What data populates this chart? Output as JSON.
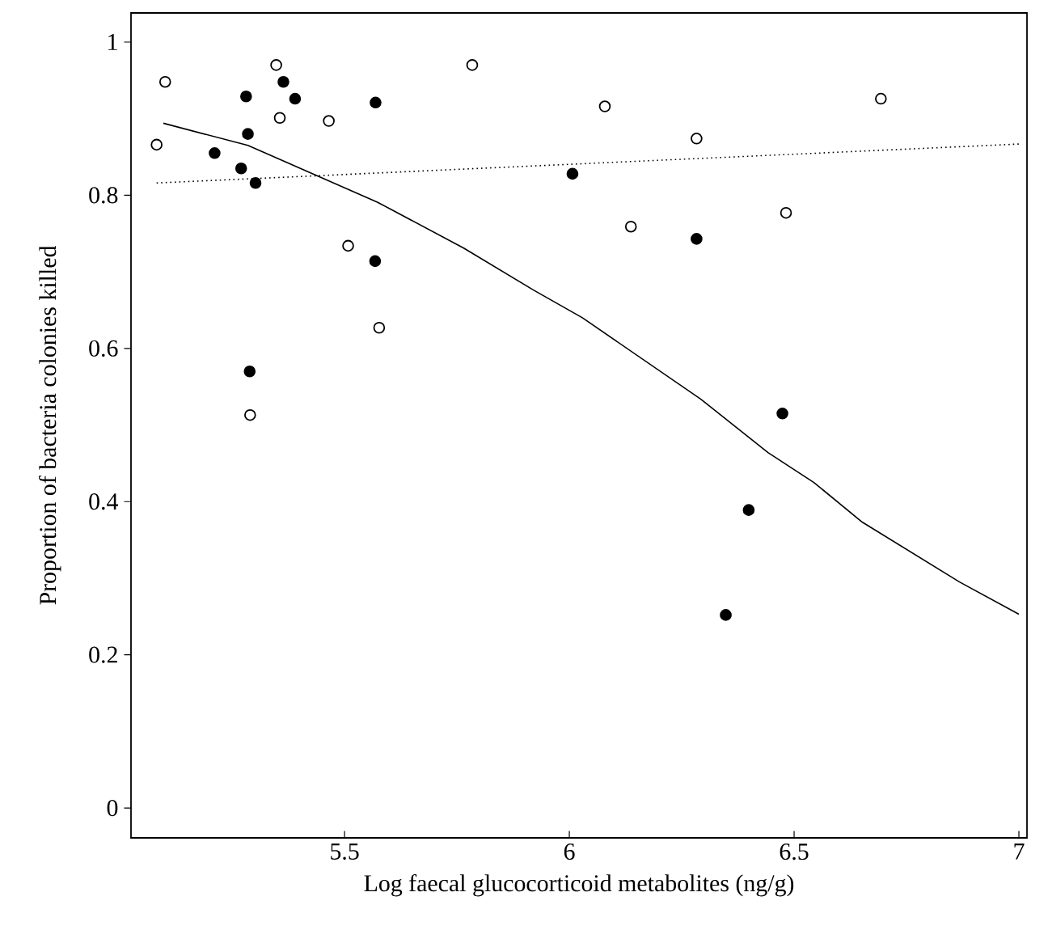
{
  "chart_data": {
    "type": "scatter",
    "xlabel": "Log faecal glucocorticoid metabolites (ng/g)",
    "ylabel": "Proportion of bacteria colonies killed",
    "xlim": [
      5.025,
      7.018
    ],
    "ylim": [
      -0.039,
      1.038
    ],
    "xticks": [
      5.5,
      6,
      6.5,
      7
    ],
    "yticks": [
      0,
      0.2,
      0.4,
      0.6,
      0.8,
      1
    ],
    "grid": false,
    "series": [
      {
        "color": "#000000",
        "marker": "circle",
        "x": [
          5.281,
          5.285,
          5.364,
          5.39,
          5.569,
          5.211,
          5.27,
          5.302,
          5.568,
          5.289,
          6.007,
          6.283,
          6.474,
          6.399,
          6.348
        ],
        "values": [
          0.929,
          0.88,
          0.948,
          0.926,
          0.921,
          0.855,
          0.835,
          0.816,
          0.714,
          0.57,
          0.828,
          0.743,
          0.515,
          0.389,
          0.252
        ]
      },
      {
        "color": "#ffffff",
        "marker": "circle",
        "x": [
          5.082,
          5.101,
          5.348,
          5.356,
          5.465,
          5.784,
          5.508,
          5.577,
          5.29,
          6.079,
          6.693,
          6.283,
          6.137,
          6.482
        ],
        "values": [
          0.866,
          0.948,
          0.97,
          0.901,
          0.897,
          0.97,
          0.734,
          0.627,
          0.513,
          0.916,
          0.926,
          0.874,
          0.759,
          0.777
        ]
      },
      {
        "type": "line",
        "color": "#000000",
        "marker": "none",
        "line_style": "solid",
        "x": [
          5.097,
          5.285,
          5.573,
          5.765,
          5.921,
          6.029,
          6.292,
          6.442,
          6.544,
          6.652,
          6.868,
          7.0
        ],
        "values": [
          0.894,
          0.865,
          0.791,
          0.731,
          0.676,
          0.64,
          0.534,
          0.464,
          0.425,
          0.373,
          0.295,
          0.253
        ]
      },
      {
        "type": "line",
        "color": "#000000",
        "marker": "none",
        "line_style": "dotted",
        "x": [
          5.082,
          7.006
        ],
        "values": [
          0.816,
          0.867
        ]
      }
    ]
  }
}
